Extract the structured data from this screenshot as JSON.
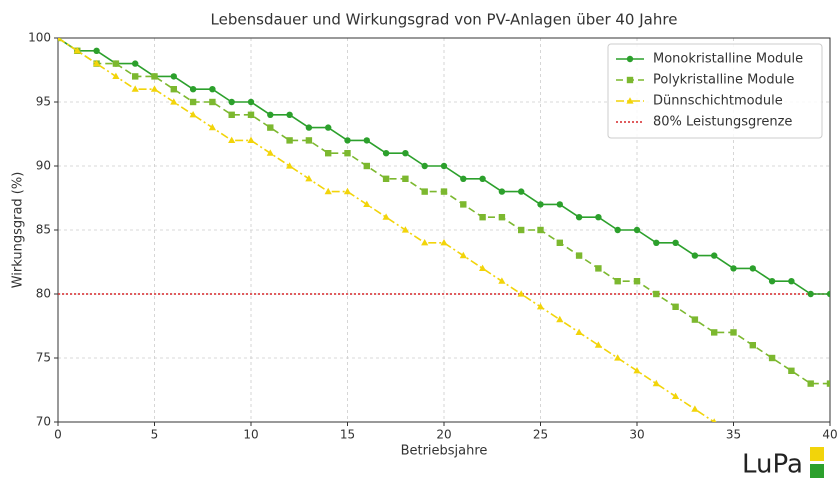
{
  "chart_data": {
    "type": "line",
    "title": "Lebensdauer und Wirkungsgrad von PV-Anlagen über 40 Jahre",
    "x_label": "Betriebsjahre",
    "y_label": "Wirkungsgrad (%)",
    "x": [
      0,
      1,
      2,
      3,
      4,
      5,
      6,
      7,
      8,
      9,
      10,
      11,
      12,
      13,
      14,
      15,
      16,
      17,
      18,
      19,
      20,
      21,
      22,
      23,
      24,
      25,
      26,
      27,
      28,
      29,
      30,
      31,
      32,
      33,
      34,
      35,
      36,
      37,
      38,
      39,
      40
    ],
    "series": [
      {
        "name": "Monokristalline Module",
        "color": "#2ca02c",
        "marker": "circle",
        "linestyle": "solid",
        "values": [
          100,
          99,
          99,
          98,
          98,
          97,
          97,
          96,
          96,
          95,
          95,
          94,
          94,
          93,
          93,
          92,
          92,
          91,
          91,
          90,
          90,
          89,
          89,
          88,
          88,
          87,
          87,
          86,
          86,
          85,
          85,
          84,
          84,
          83,
          83,
          82,
          82,
          81,
          81,
          80,
          80
        ]
      },
      {
        "name": "Polykristalline Module",
        "color": "#7cb82f",
        "marker": "square",
        "linestyle": "dashed",
        "values": [
          100,
          99,
          98,
          98,
          97,
          97,
          96,
          95,
          95,
          94,
          94,
          93,
          92,
          92,
          91,
          91,
          90,
          89,
          89,
          88,
          88,
          87,
          86,
          86,
          85,
          85,
          84,
          83,
          82,
          81,
          81,
          80,
          79,
          78,
          77,
          77,
          76,
          75,
          74,
          73,
          73
        ]
      },
      {
        "name": "Dünnschichtmodule",
        "color": "#f2d40a",
        "marker": "triangle",
        "linestyle": "dashdot",
        "values": [
          100,
          99,
          98,
          97,
          96,
          96,
          95,
          94,
          93,
          92,
          92,
          91,
          90,
          89,
          88,
          88,
          87,
          86,
          85,
          84,
          84,
          83,
          82,
          81,
          80,
          79,
          78,
          77,
          76,
          75,
          74,
          73,
          72,
          71,
          70,
          null,
          null,
          null,
          null,
          null,
          null
        ]
      }
    ],
    "hlines": [
      {
        "name": "80% Leistungsgrenze",
        "value": 80,
        "color": "#d62728",
        "linestyle": "dotted"
      }
    ],
    "xlim": [
      0,
      40
    ],
    "xticks": [
      0,
      5,
      10,
      15,
      20,
      25,
      30,
      35,
      40
    ],
    "ylim": [
      70,
      100
    ],
    "yticks": [
      70,
      75,
      80,
      85,
      90,
      95,
      100
    ],
    "grid": true,
    "legend": "upper right",
    "logo": "LuPa"
  }
}
